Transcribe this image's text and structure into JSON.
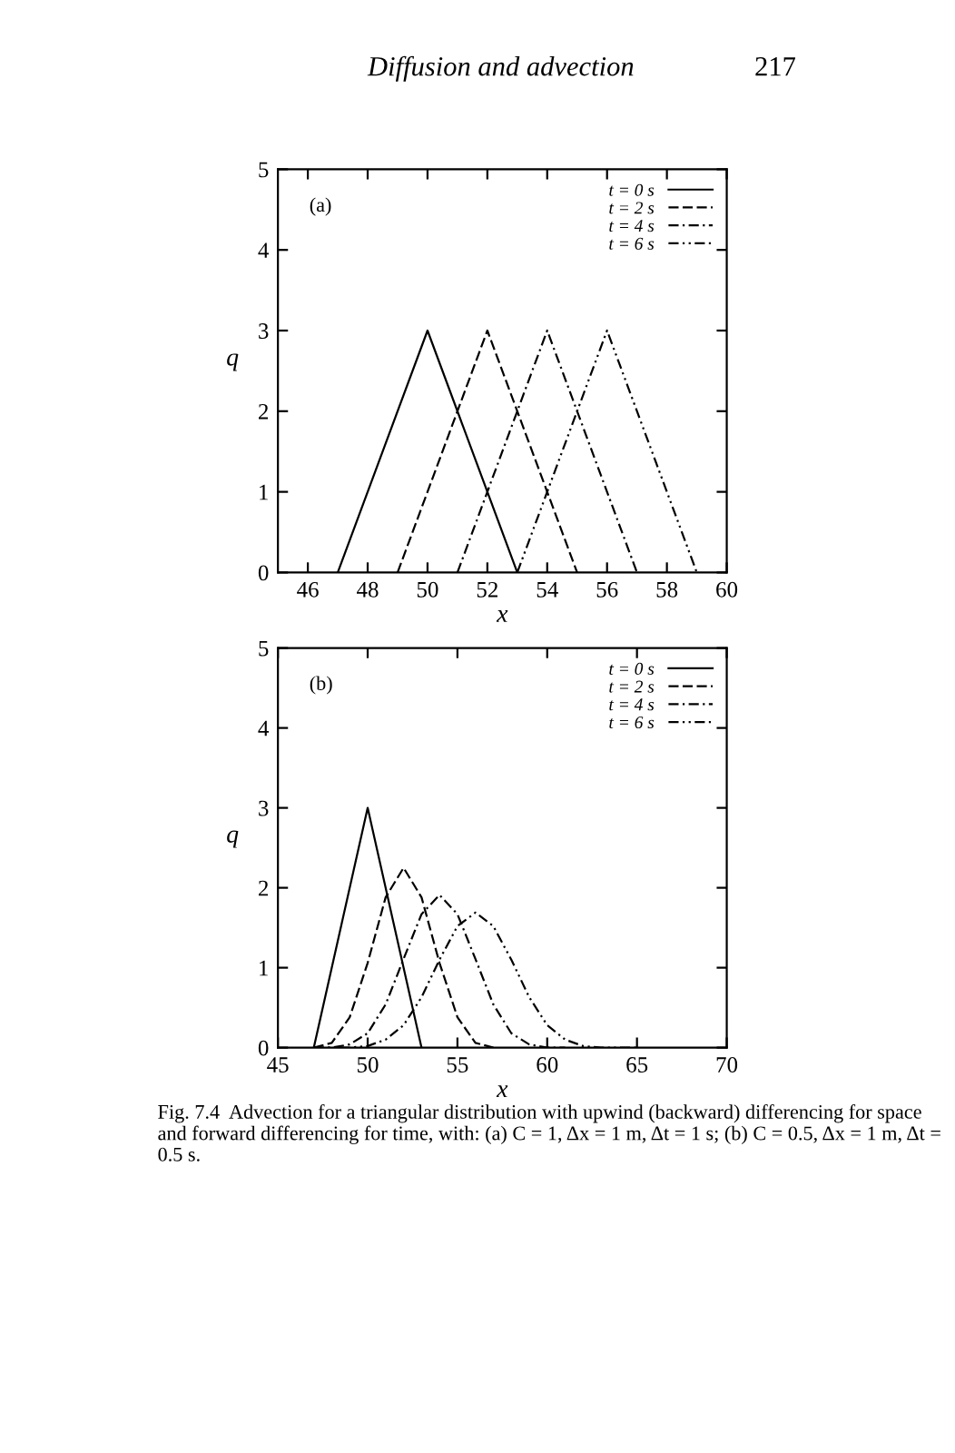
{
  "chart_data": [
    {
      "type": "line",
      "title": "(a)",
      "xlabel": "x",
      "ylabel": "q",
      "xlim": [
        45,
        60
      ],
      "xticks": [
        46,
        48,
        50,
        52,
        54,
        56,
        58,
        60
      ],
      "ylim": [
        0,
        5
      ],
      "yticks": [
        0,
        1,
        2,
        3,
        4,
        5
      ],
      "legend": "top right",
      "grid": false,
      "annotations": [
        "Diffusion and advection",
        "217"
      ],
      "series": [
        {
          "name": "t = 0 s",
          "color": "#000000",
          "line_style": "solid",
          "x": [
            47,
            50,
            53
          ],
          "values": [
            0,
            3,
            0
          ]
        },
        {
          "name": "t = 2 s",
          "color": "#000000",
          "line_style": "dashed",
          "x": [
            49,
            52,
            55
          ],
          "values": [
            0,
            3,
            0
          ]
        },
        {
          "name": "t = 4 s",
          "color": "#000000",
          "line_style": "dashdot",
          "x": [
            51,
            54,
            57
          ],
          "values": [
            0,
            3,
            0
          ]
        },
        {
          "name": "t = 6 s",
          "color": "#000000",
          "line_style": "dashdotdot",
          "x": [
            53,
            56,
            59
          ],
          "values": [
            0,
            3,
            0
          ]
        }
      ]
    },
    {
      "type": "line",
      "title": "(b)",
      "xlabel": "x",
      "ylabel": "q",
      "xlim": [
        45,
        70
      ],
      "xticks": [
        45,
        50,
        55,
        60,
        65,
        70
      ],
      "ylim": [
        0,
        5
      ],
      "yticks": [
        0,
        1,
        2,
        3,
        4,
        5
      ],
      "legend": "top right",
      "grid": false,
      "annotations": [
        "Fig. 7.4  Advection for a triangular distribution with upwind (backward) differencing for space and forward differencing for time, with: (a) C = 1, Δx = 1 m, Δt = 1 s; (b) C = 0.5, Δx = 1 m, Δt = 0.5 s."
      ],
      "series": [
        {
          "name": "t = 0 s",
          "color": "#000000",
          "line_style": "solid",
          "x": [
            47,
            50,
            53
          ],
          "values": [
            0,
            3,
            0
          ]
        },
        {
          "name": "t = 2 s",
          "color": "#000000",
          "line_style": "dashed",
          "x": [
            47,
            48,
            49,
            50,
            51,
            52,
            53,
            54,
            55,
            56,
            57
          ],
          "values": [
            0,
            0.06,
            0.38,
            1.06,
            1.88,
            2.25,
            1.88,
            1.06,
            0.38,
            0.06,
            0
          ]
        },
        {
          "name": "t = 4 s",
          "color": "#000000",
          "line_style": "dashdot",
          "x": [
            47,
            48,
            49,
            50,
            51,
            52,
            53,
            54,
            55,
            56,
            57,
            58,
            59,
            60,
            61
          ],
          "values": [
            0,
            0.0,
            0.04,
            0.18,
            0.54,
            1.11,
            1.67,
            1.91,
            1.67,
            1.11,
            0.54,
            0.18,
            0.04,
            0.0,
            0
          ]
        },
        {
          "name": "t = 6 s",
          "color": "#000000",
          "line_style": "dashdotdot",
          "x": [
            47,
            48,
            49,
            50,
            51,
            52,
            53,
            54,
            55,
            56,
            57,
            58,
            59,
            60,
            61,
            62,
            63,
            64,
            65
          ],
          "values": [
            0,
            0.0,
            0.0,
            0.02,
            0.1,
            0.28,
            0.63,
            1.1,
            1.52,
            1.69,
            1.52,
            1.1,
            0.63,
            0.28,
            0.1,
            0.02,
            0.0,
            0.0,
            0
          ]
        }
      ]
    }
  ]
}
